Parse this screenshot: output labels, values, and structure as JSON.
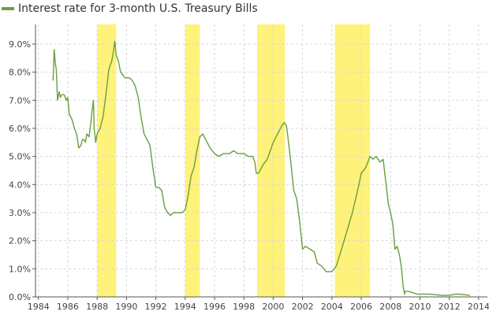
{
  "legend": {
    "label": "Interest rate for 3-month U.S. Treasury Bills",
    "color": "#6a9e3e"
  },
  "chart_data": {
    "type": "line",
    "title": "",
    "xlabel": "",
    "ylabel": "",
    "xlim": [
      1983.8,
      2014.6
    ],
    "ylim": [
      0,
      9.7
    ],
    "grid": true,
    "legend_position": "top-left",
    "x_ticks": [
      1984,
      1986,
      1988,
      1990,
      1992,
      1994,
      1996,
      1998,
      2000,
      2002,
      2004,
      2006,
      2008,
      2010,
      2012,
      2014
    ],
    "y_ticks": [
      0,
      1,
      2,
      3,
      4,
      5,
      6,
      7,
      8,
      9
    ],
    "x_tick_labels": [
      "1984",
      "1986",
      "1988",
      "1990",
      "1992",
      "1994",
      "1996",
      "1998",
      "2000",
      "2002",
      "2004",
      "2006",
      "2008",
      "2010",
      "2012",
      "2014"
    ],
    "y_tick_labels": [
      "0.0%",
      "1.0%",
      "2.0%",
      "3.0%",
      "4.0%",
      "5.0%",
      "6.0%",
      "7.0%",
      "8.0%",
      "9.0%"
    ],
    "highlight_color": "#fff27a",
    "highlight_bands": [
      {
        "start": 1988.0,
        "end": 1989.3
      },
      {
        "start": 1994.0,
        "end": 1995.0
      },
      {
        "start": 1998.9,
        "end": 2000.8
      },
      {
        "start": 2004.2,
        "end": 2006.6
      }
    ],
    "series": [
      {
        "name": "Interest rate for 3-month U.S. Treasury Bills",
        "color": "#6a9e3e",
        "x": [
          1985.0,
          1985.08,
          1985.15,
          1985.22,
          1985.3,
          1985.42,
          1985.5,
          1985.6,
          1985.75,
          1985.9,
          1986.0,
          1986.1,
          1986.2,
          1986.3,
          1986.45,
          1986.6,
          1986.75,
          1986.9,
          1987.0,
          1987.1,
          1987.2,
          1987.3,
          1987.45,
          1987.55,
          1987.65,
          1987.75,
          1987.8,
          1987.9,
          1988.0,
          1988.2,
          1988.4,
          1988.6,
          1988.8,
          1989.0,
          1989.1,
          1989.2,
          1989.3,
          1989.45,
          1989.6,
          1989.75,
          1989.9,
          1990.0,
          1990.2,
          1990.4,
          1990.6,
          1990.8,
          1991.0,
          1991.2,
          1991.4,
          1991.6,
          1991.8,
          1992.0,
          1992.2,
          1992.4,
          1992.6,
          1992.8,
          1993.0,
          1993.2,
          1993.5,
          1993.8,
          1994.0,
          1994.2,
          1994.4,
          1994.6,
          1994.8,
          1995.0,
          1995.2,
          1995.4,
          1995.7,
          1996.0,
          1996.3,
          1996.6,
          1997.0,
          1997.3,
          1997.6,
          1998.0,
          1998.3,
          1998.6,
          1998.75,
          1998.85,
          1999.0,
          1999.3,
          1999.6,
          2000.0,
          2000.3,
          2000.6,
          2000.75,
          2000.9,
          2001.0,
          2001.2,
          2001.4,
          2001.6,
          2001.8,
          2002.0,
          2002.2,
          2002.5,
          2002.8,
          2003.0,
          2003.3,
          2003.6,
          2003.8,
          2004.0,
          2004.3,
          2004.6,
          2005.0,
          2005.4,
          2005.8,
          2006.0,
          2006.3,
          2006.6,
          2006.8,
          2007.0,
          2007.3,
          2007.5,
          2007.6,
          2007.7,
          2007.85,
          2008.0,
          2008.15,
          2008.3,
          2008.45,
          2008.6,
          2008.75,
          2008.85,
          2008.95,
          2009.0,
          2009.2,
          2009.5,
          2009.8,
          2010.0,
          2010.5,
          2011.0,
          2011.5,
          2012.0,
          2012.5,
          2013.0,
          2013.4
        ],
        "y": [
          7.7,
          8.8,
          8.3,
          8.1,
          7.0,
          7.3,
          7.1,
          7.2,
          7.2,
          7.0,
          7.1,
          6.5,
          6.4,
          6.3,
          6.0,
          5.8,
          5.3,
          5.4,
          5.6,
          5.6,
          5.5,
          5.8,
          5.7,
          6.1,
          6.6,
          7.0,
          6.0,
          5.5,
          5.8,
          6.0,
          6.4,
          7.2,
          8.1,
          8.4,
          8.7,
          9.1,
          8.6,
          8.4,
          8.0,
          7.9,
          7.8,
          7.8,
          7.8,
          7.7,
          7.5,
          7.1,
          6.4,
          5.8,
          5.6,
          5.4,
          4.6,
          3.9,
          3.9,
          3.8,
          3.2,
          3.0,
          2.9,
          3.0,
          3.0,
          3.0,
          3.1,
          3.6,
          4.3,
          4.6,
          5.2,
          5.7,
          5.8,
          5.6,
          5.3,
          5.1,
          5.0,
          5.1,
          5.1,
          5.2,
          5.1,
          5.1,
          5.0,
          5.0,
          4.8,
          4.4,
          4.4,
          4.7,
          4.9,
          5.5,
          5.8,
          6.1,
          6.2,
          6.1,
          5.7,
          4.8,
          3.8,
          3.5,
          2.7,
          1.7,
          1.8,
          1.7,
          1.6,
          1.2,
          1.1,
          0.9,
          0.9,
          0.9,
          1.1,
          1.6,
          2.3,
          3.0,
          3.9,
          4.4,
          4.6,
          5.0,
          4.9,
          5.0,
          4.8,
          4.9,
          4.4,
          4.0,
          3.3,
          3.0,
          2.6,
          1.7,
          1.8,
          1.5,
          1.0,
          0.4,
          0.1,
          0.2,
          0.2,
          0.15,
          0.1,
          0.1,
          0.1,
          0.08,
          0.05,
          0.06,
          0.1,
          0.08,
          0.05
        ]
      }
    ]
  }
}
